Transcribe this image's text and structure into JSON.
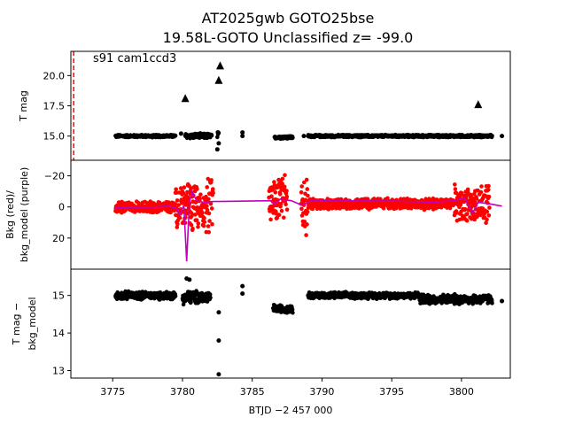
{
  "chart_data": {
    "type": "scatter",
    "title_line1": "AT2025gwb  GOTO25bse",
    "title_line2": "19.58L-GOTO Unclassified z= -99.0",
    "xlabel": "BTJD −2 457 000",
    "xlim": [
      3772.0,
      3803.5
    ],
    "x_ticks": [
      3775,
      3780,
      3785,
      3790,
      3795,
      3800
    ],
    "x_tick_labels": [
      "3775",
      "3780",
      "3785",
      "3790",
      "3795",
      "3800"
    ],
    "colors": {
      "data": "#000000",
      "bkg": "#ff0000",
      "model": "#bf00bf",
      "marker_line": "#ff0000"
    },
    "panels": [
      {
        "id": "lightcurve",
        "ylabel": "T mag",
        "ylim": [
          22.0,
          13.0
        ],
        "y_ticks": [
          15.0,
          17.5,
          20.0
        ],
        "y_tick_labels": [
          "15.0",
          "17.5",
          "20.0"
        ],
        "annotation": "s91 cam1ccd3",
        "vline_x": 3772.2,
        "segments": [
          {
            "x0": 3775.2,
            "x1": 3779.5,
            "y": 15.0,
            "spread": 0.12
          },
          {
            "x0": 3780.2,
            "x1": 3782.1,
            "y": 15.0,
            "spread": 0.25
          },
          {
            "x0": 3782.5,
            "x1": 3782.6,
            "y": 15.0,
            "spread": 0.4
          },
          {
            "x0": 3786.6,
            "x1": 3787.9,
            "y": 14.9,
            "spread": 0.15
          },
          {
            "x0": 3789.0,
            "x1": 3802.2,
            "y": 15.0,
            "spread": 0.12
          }
        ],
        "points": [
          {
            "x": 3779.9,
            "y": 15.2
          },
          {
            "x": 3782.5,
            "y": 13.9
          },
          {
            "x": 3782.6,
            "y": 14.4
          },
          {
            "x": 3784.3,
            "y": 15.0
          },
          {
            "x": 3784.3,
            "y": 15.3
          },
          {
            "x": 3802.9,
            "y": 15.0
          },
          {
            "x": 3788.7,
            "y": 15.0
          }
        ],
        "triangles": [
          {
            "x": 3780.2,
            "y": 18.1
          },
          {
            "x": 3782.6,
            "y": 19.6
          },
          {
            "x": 3782.7,
            "y": 20.8
          },
          {
            "x": 3801.2,
            "y": 17.6
          }
        ]
      },
      {
        "id": "background",
        "ylabel_line1": "Bkg (red)/",
        "ylabel_line2": "bkg_model (purple)",
        "ylim": [
          -30,
          40
        ],
        "y_ticks": [
          -20,
          0,
          20
        ],
        "y_tick_labels": [
          "−20",
          "0",
          "20"
        ],
        "segments": [
          {
            "x0": 3775.2,
            "x1": 3779.5,
            "y": 0.0,
            "spread": 4.0
          },
          {
            "x0": 3779.5,
            "x1": 3782.2,
            "y": 0.0,
            "spread": 20.0
          },
          {
            "x0": 3786.2,
            "x1": 3787.5,
            "y": -5.0,
            "spread": 18.0
          },
          {
            "x0": 3788.5,
            "x1": 3789.0,
            "y": 0.0,
            "spread": 22.0
          },
          {
            "x0": 3789.0,
            "x1": 3799.5,
            "y": -2.0,
            "spread": 4.0
          },
          {
            "x0": 3799.5,
            "x1": 3802.0,
            "y": -2.0,
            "spread": 14.0
          }
        ],
        "model_line": [
          [
            3775.2,
            0.5
          ],
          [
            3776.5,
            0.2
          ],
          [
            3778.0,
            0.0
          ],
          [
            3779.0,
            -0.5
          ],
          [
            3779.6,
            1.0
          ],
          [
            3779.8,
            5.0
          ],
          [
            3780.1,
            -1.0
          ],
          [
            3780.3,
            35.0
          ],
          [
            3780.5,
            -3.0
          ],
          [
            3780.7,
            -10.0
          ],
          [
            3781.0,
            -4.0
          ],
          [
            3781.5,
            -3.0
          ],
          [
            3782.2,
            -3.5
          ],
          [
            3786.3,
            -4.0
          ],
          [
            3786.6,
            -2.0
          ],
          [
            3787.0,
            -5.0
          ],
          [
            3787.8,
            -4.0
          ],
          [
            3788.6,
            -1.0
          ],
          [
            3789.2,
            -4.0
          ],
          [
            3795.0,
            -3.8
          ],
          [
            3798.0,
            -3.0
          ],
          [
            3799.5,
            -4.0
          ],
          [
            3800.2,
            -6.0
          ],
          [
            3800.8,
            4.0
          ],
          [
            3801.2,
            -3.0
          ],
          [
            3802.0,
            -2.0
          ],
          [
            3802.9,
            -0.5
          ]
        ]
      },
      {
        "id": "difference",
        "ylabel_line1": "T mag −",
        "ylabel_line2": "bkg_model",
        "ylim": [
          15.7,
          12.8
        ],
        "y_ticks": [
          13,
          14,
          15
        ],
        "y_tick_labels": [
          "13",
          "14",
          "15"
        ],
        "segments": [
          {
            "x0": 3775.2,
            "x1": 3779.5,
            "y": 15.0,
            "spread": 0.12
          },
          {
            "x0": 3780.0,
            "x1": 3782.0,
            "y": 14.95,
            "spread": 0.2
          },
          {
            "x0": 3786.5,
            "x1": 3787.9,
            "y": 14.65,
            "spread": 0.12
          },
          {
            "x0": 3789.0,
            "x1": 3797.0,
            "y": 15.0,
            "spread": 0.1
          },
          {
            "x0": 3797.0,
            "x1": 3802.2,
            "y": 14.9,
            "spread": 0.15
          }
        ],
        "points": [
          {
            "x": 3780.3,
            "y": 15.45
          },
          {
            "x": 3780.5,
            "y": 15.42
          },
          {
            "x": 3782.6,
            "y": 12.9
          },
          {
            "x": 3782.6,
            "y": 13.8
          },
          {
            "x": 3782.6,
            "y": 14.55
          },
          {
            "x": 3784.3,
            "y": 15.05
          },
          {
            "x": 3784.3,
            "y": 15.25
          },
          {
            "x": 3802.9,
            "y": 14.85
          }
        ]
      }
    ]
  }
}
